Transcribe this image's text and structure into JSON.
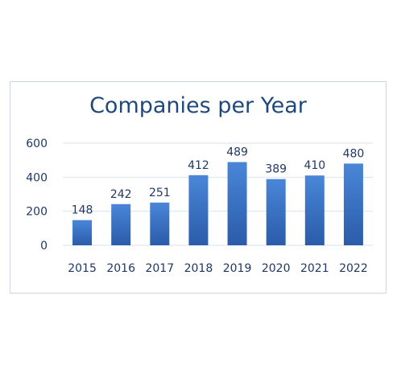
{
  "chart_data": {
    "type": "bar",
    "title": "Companies per Year",
    "categories": [
      "2015",
      "2016",
      "2017",
      "2018",
      "2019",
      "2020",
      "2021",
      "2022"
    ],
    "values": [
      148,
      242,
      251,
      412,
      489,
      389,
      410,
      480
    ],
    "ylim": [
      0,
      600
    ],
    "yticks": [
      "0",
      "200",
      "400",
      "600"
    ],
    "grid": true,
    "legend": "none",
    "colors": {
      "bar_top": "#4a86d8",
      "bar_bottom": "#2a5caa",
      "grid": "#d9e2ee",
      "text": "#1f3864",
      "title": "#1f497d"
    }
  }
}
